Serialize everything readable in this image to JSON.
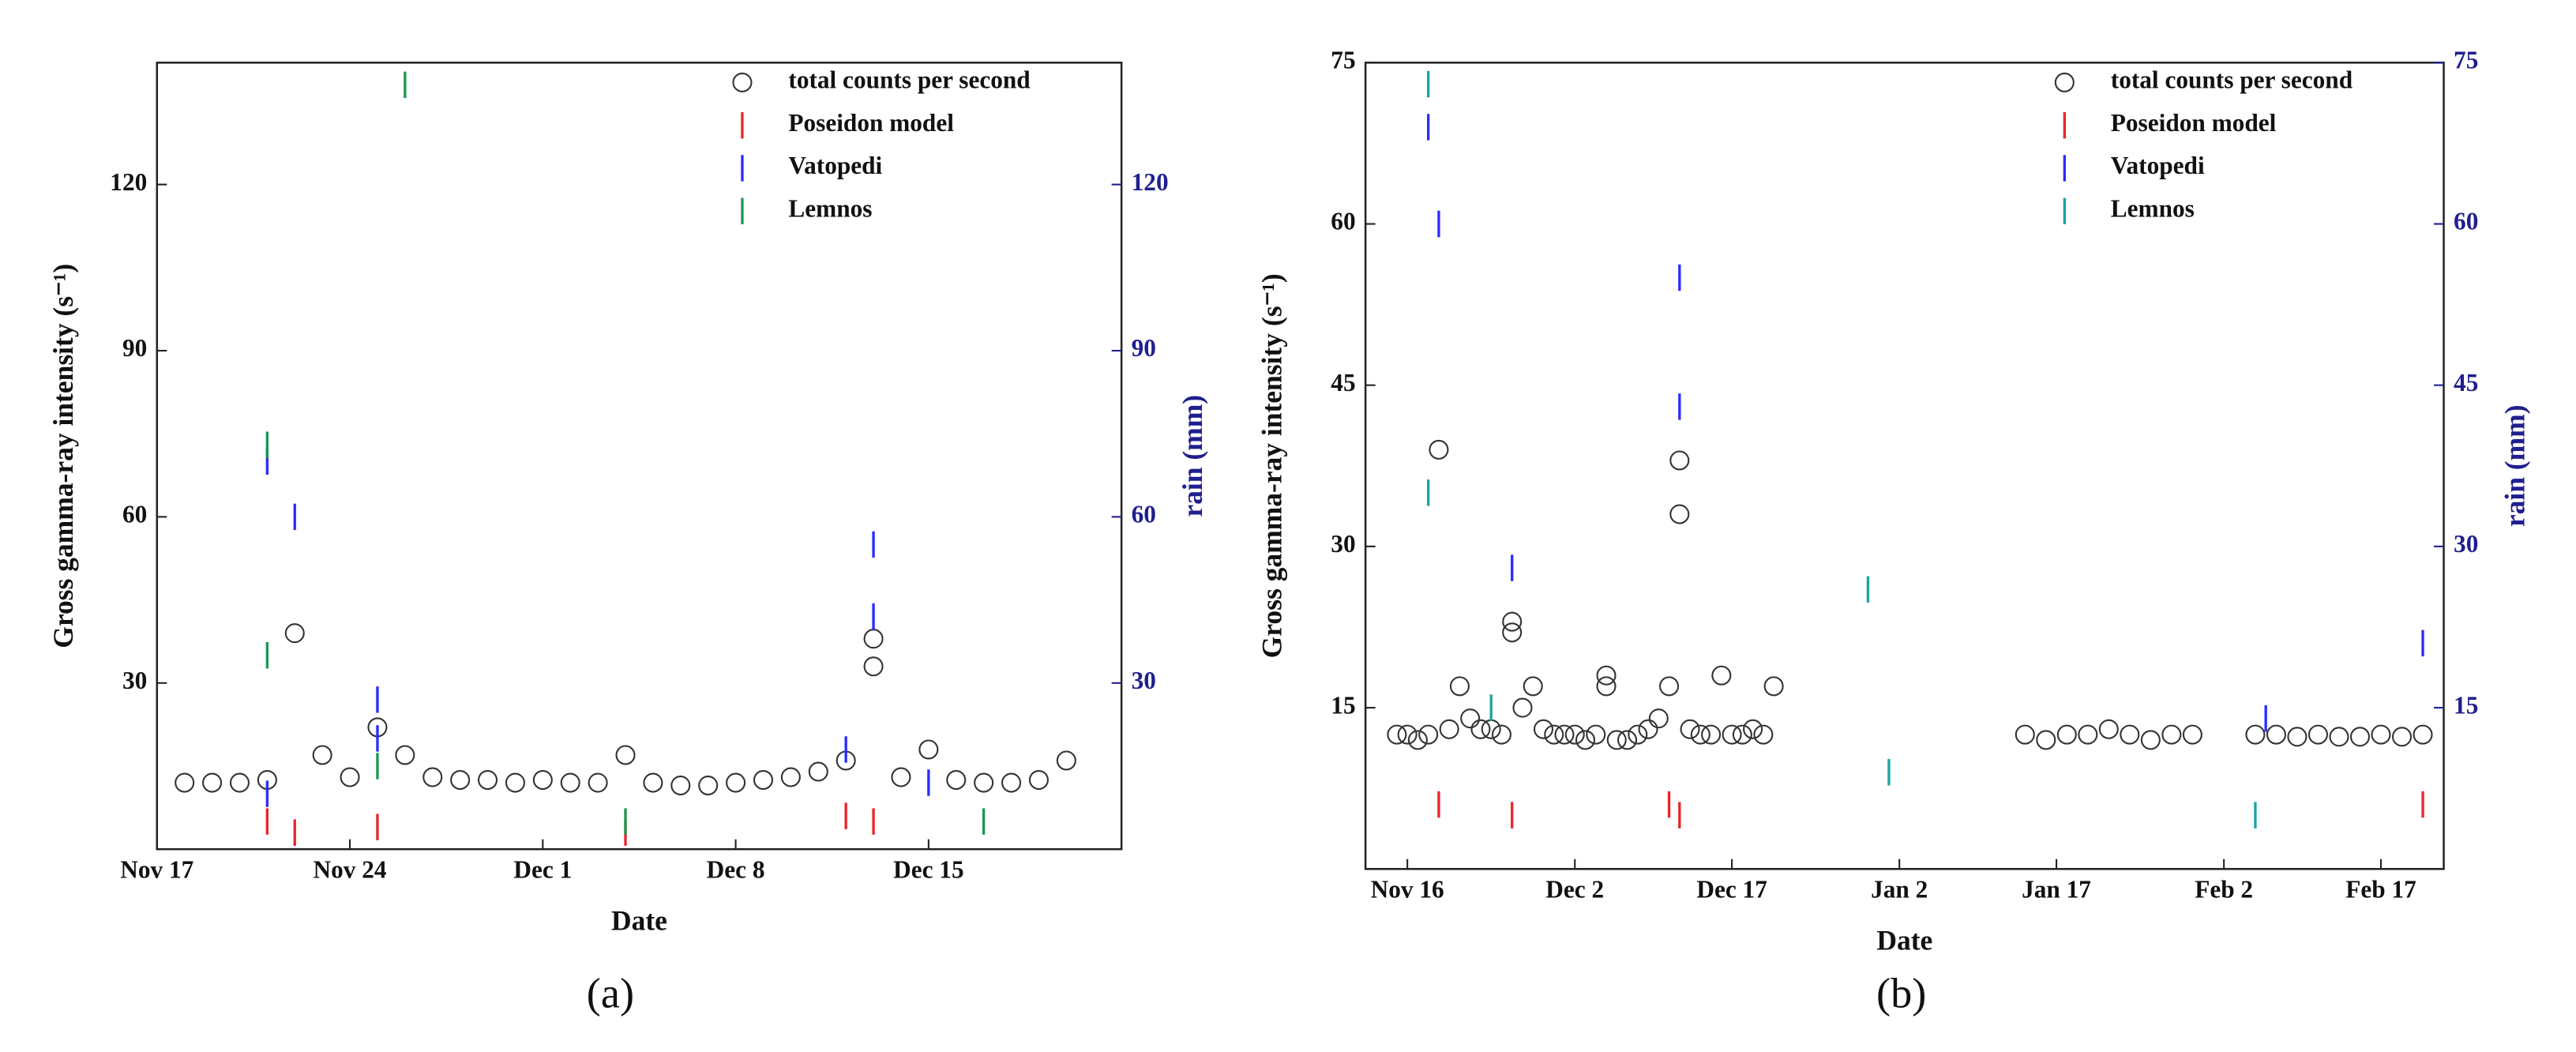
{
  "chart_data": [
    {
      "type": "scatter",
      "label": "(a)",
      "x_label": "Date",
      "y_label": "Gross gamma-ray intensity (s⁻¹)",
      "y2_label": "rain (mm)",
      "xlim": [
        "Nov 17",
        "Dec 22"
      ],
      "xticks": [
        "Nov 17",
        "Nov 24",
        "Dec 1",
        "Dec 8",
        "Dec 15"
      ],
      "ylim": [
        0,
        142
      ],
      "yticks": [
        30,
        60,
        90,
        120
      ],
      "y2lim": [
        0,
        142
      ],
      "y2ticks": [
        30,
        60,
        90,
        120
      ],
      "y2_color": "#1f1f8f",
      "legend": "upper right",
      "series": [
        {
          "name": "total counts per second",
          "color": "#333333",
          "marker": "circle",
          "x": [
            "Nov 18",
            "Nov 19",
            "Nov 20",
            "Nov 21",
            "Nov 22",
            "Nov 23",
            "Nov 24",
            "Nov 25",
            "Nov 26",
            "Nov 27",
            "Nov 28",
            "Nov 29",
            "Nov 30",
            "Dec 1",
            "Dec 2",
            "Dec 3",
            "Dec 4",
            "Dec 5",
            "Dec 6",
            "Dec 7",
            "Dec 8",
            "Dec 9",
            "Dec 10",
            "Dec 11",
            "Dec 12",
            "Dec 13",
            "Dec 13",
            "Dec 14",
            "Dec 15",
            "Dec 16",
            "Dec 17",
            "Dec 18",
            "Dec 19",
            "Dec 20"
          ],
          "values": [
            12,
            12,
            12,
            12.5,
            39,
            17,
            13,
            22,
            17,
            13,
            12.5,
            12.5,
            12,
            12.5,
            12,
            12,
            17,
            12,
            11.5,
            11.5,
            12,
            12.5,
            13,
            14,
            16,
            38,
            33,
            13,
            18,
            12.5,
            12,
            12,
            12.5,
            16
          ]
        },
        {
          "name": "Poseidon model",
          "color": "#e8262b",
          "marker": "dash",
          "axis": "y2",
          "x": [
            "Nov 21",
            "Nov 22",
            "Nov 25",
            "Dec 4",
            "Dec 12",
            "Dec 13"
          ],
          "values": [
            5,
            3,
            4,
            3,
            6,
            5
          ]
        },
        {
          "name": "Vatopedi",
          "color": "#2b2bff",
          "marker": "dash",
          "axis": "y2",
          "x": [
            "Nov 21",
            "Nov 22",
            "Nov 21",
            "Nov 25",
            "Nov 25",
            "Dec 13",
            "Dec 13",
            "Dec 12",
            "Dec 15"
          ],
          "values": [
            70,
            60,
            10,
            27,
            20,
            55,
            42,
            18,
            12
          ]
        },
        {
          "name": "Lemnos",
          "color": "#1a9850",
          "marker": "dash",
          "axis": "y2",
          "x": [
            "Nov 21",
            "Nov 21",
            "Nov 26",
            "Nov 25",
            "Dec 4",
            "Dec 17"
          ],
          "values": [
            73,
            35,
            138,
            15,
            5,
            5
          ]
        }
      ]
    },
    {
      "type": "scatter",
      "label": "(b)",
      "x_label": "Date",
      "y_label": "Gross gamma-ray intensity (s⁻¹)",
      "y2_label": "rain (mm)",
      "xlim": [
        "Nov 12",
        "Feb 23"
      ],
      "xticks": [
        "Nov 16",
        "Dec 2",
        "Dec 17",
        "Jan 2",
        "Jan 17",
        "Feb 2",
        "Feb 17"
      ],
      "ylim": [
        0,
        75
      ],
      "yticks": [
        15,
        30,
        45,
        60,
        75
      ],
      "y2lim": [
        0,
        75
      ],
      "y2ticks": [
        15,
        30,
        45,
        60,
        75
      ],
      "y2_color": "#1f1f8f",
      "legend": "upper right",
      "series": [
        {
          "name": "total counts per second",
          "color": "#333333",
          "marker": "circle",
          "x": [
            "Nov 15",
            "Nov 16",
            "Nov 17",
            "Nov 18",
            "Nov 19",
            "Nov 20",
            "Nov 21",
            "Nov 22",
            "Nov 23",
            "Nov 24",
            "Nov 25",
            "Nov 26",
            "Nov 26",
            "Nov 27",
            "Nov 28",
            "Nov 29",
            "Nov 30",
            "Dec 1",
            "Dec 2",
            "Dec 3",
            "Dec 4",
            "Dec 5",
            "Dec 5",
            "Dec 6",
            "Dec 7",
            "Dec 8",
            "Dec 9",
            "Dec 10",
            "Dec 11",
            "Dec 12",
            "Dec 12",
            "Dec 13",
            "Dec 14",
            "Dec 15",
            "Dec 16",
            "Dec 17",
            "Dec 18",
            "Dec 19",
            "Dec 20",
            "Dec 21",
            "Jan 14",
            "Jan 16",
            "Jan 18",
            "Jan 20",
            "Jan 22",
            "Jan 24",
            "Jan 26",
            "Jan 28",
            "Jan 30",
            "Feb 5",
            "Feb 7",
            "Feb 9",
            "Feb 11",
            "Feb 13",
            "Feb 15",
            "Feb 17",
            "Feb 19",
            "Feb 21"
          ],
          "values": [
            12.5,
            12.5,
            12,
            12.5,
            39,
            13,
            17,
            14,
            13,
            13,
            12.5,
            22,
            23,
            15,
            17,
            13,
            12.5,
            12.5,
            12.5,
            12,
            12.5,
            18,
            17,
            12,
            12,
            12.5,
            13,
            14,
            17,
            38,
            33,
            13,
            12.5,
            12.5,
            18,
            12.5,
            12.5,
            13,
            12.5,
            17,
            12.5,
            12,
            12.5,
            12.5,
            13,
            12.5,
            12,
            12.5,
            12.5,
            12.5,
            12.5,
            12.3,
            12.5,
            12.3,
            12.3,
            12.5,
            12.3,
            12.5
          ]
        },
        {
          "name": "Poseidon model",
          "color": "#e8262b",
          "marker": "dash",
          "axis": "y2",
          "x": [
            "Nov 19",
            "Nov 26",
            "Dec 11",
            "Dec 12",
            "Feb 21"
          ],
          "values": [
            6,
            5,
            6,
            5,
            6
          ]
        },
        {
          "name": "Vatopedi",
          "color": "#2b2bff",
          "marker": "dash",
          "axis": "y2",
          "x": [
            "Nov 18",
            "Nov 19",
            "Nov 26",
            "Dec 12",
            "Dec 12",
            "Feb 6",
            "Feb 21"
          ],
          "values": [
            69,
            60,
            28,
            55,
            43,
            14,
            21
          ]
        },
        {
          "name": "Lemnos",
          "color": "#1aa3a3",
          "marker": "dash",
          "axis": "y2",
          "x": [
            "Nov 18",
            "Nov 18",
            "Nov 24",
            "Dec 30",
            "Jan 1",
            "Feb 5"
          ],
          "values": [
            73,
            35,
            15,
            26,
            9,
            5
          ]
        }
      ]
    }
  ]
}
